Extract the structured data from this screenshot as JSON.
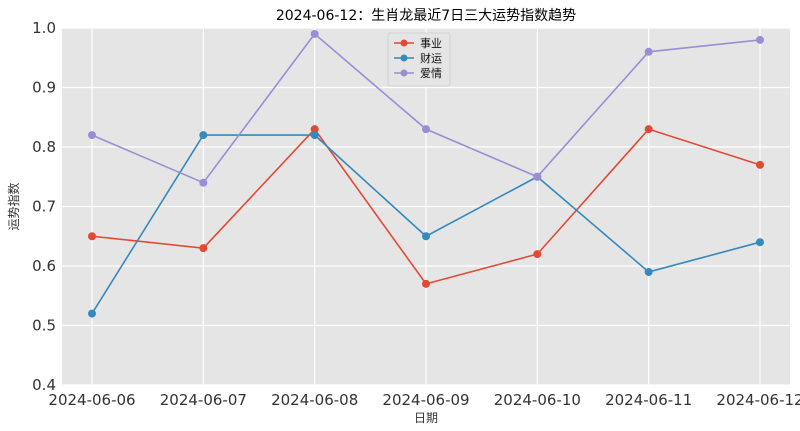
{
  "chart_data": {
    "type": "line",
    "title": "2024-06-12：生肖龙最近7日三大运势指数趋势",
    "xlabel": "日期",
    "ylabel": "运势指数",
    "categories": [
      "2024-06-06",
      "2024-06-07",
      "2024-06-08",
      "2024-06-09",
      "2024-06-10",
      "2024-06-11",
      "2024-06-12"
    ],
    "yticks": [
      "0.4",
      "0.5",
      "0.6",
      "0.7",
      "0.8",
      "0.9",
      "1.0"
    ],
    "ylim": [
      0.4,
      1.0
    ],
    "grid": true,
    "legend_position": "top-center",
    "series": [
      {
        "name": "事业",
        "color": "#e24a33",
        "values": [
          0.65,
          0.63,
          0.83,
          0.57,
          0.62,
          0.83,
          0.77
        ]
      },
      {
        "name": "财运",
        "color": "#348abd",
        "values": [
          0.52,
          0.82,
          0.82,
          0.65,
          0.75,
          0.59,
          0.64
        ]
      },
      {
        "name": "爱情",
        "color": "#988ed5",
        "values": [
          0.82,
          0.74,
          0.99,
          0.83,
          0.75,
          0.96,
          0.98
        ]
      }
    ]
  }
}
